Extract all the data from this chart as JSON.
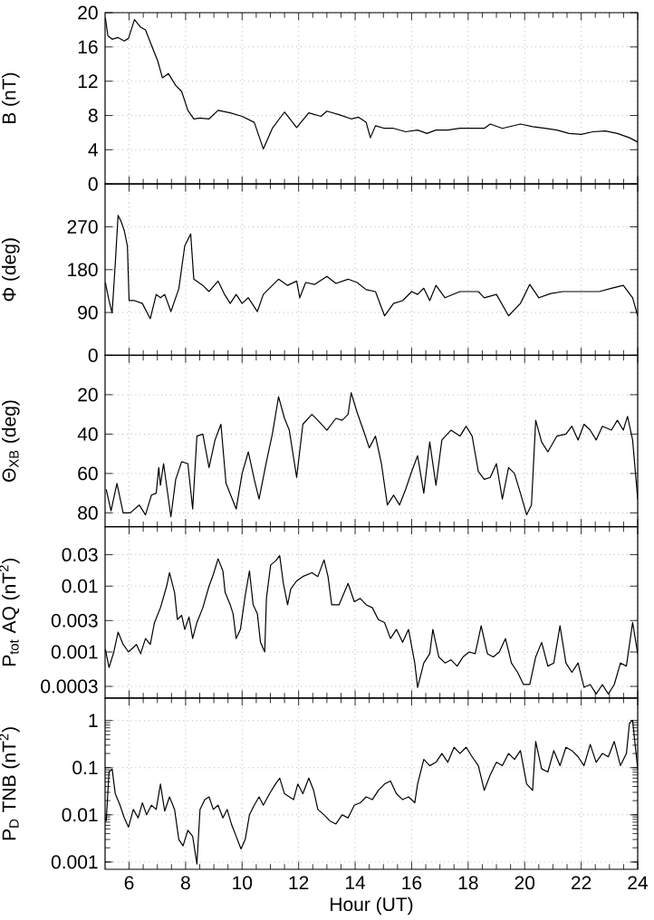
{
  "chart_data": [
    {
      "type": "line",
      "ylabel": "B (nT)",
      "xlim": [
        5.15,
        24
      ],
      "xticks": [
        6,
        8,
        10,
        12,
        14,
        16,
        18,
        20,
        22,
        24
      ],
      "ylim": [
        0,
        20
      ],
      "yticks": [
        0,
        4,
        8,
        12,
        16,
        20
      ],
      "grid": true,
      "tick_labels": "y",
      "color": "#000000",
      "x": [
        5.16,
        5.25,
        5.4,
        5.61,
        5.83,
        5.98,
        6.19,
        6.41,
        6.58,
        6.84,
        7.01,
        7.18,
        7.39,
        7.65,
        7.86,
        8.08,
        8.29,
        8.51,
        8.83,
        9.15,
        9.58,
        10.0,
        10.43,
        10.75,
        11.07,
        11.5,
        11.93,
        12.36,
        12.79,
        13.0,
        13.43,
        13.86,
        14.12,
        14.39,
        14.54,
        14.72,
        15.04,
        15.36,
        15.79,
        16.21,
        16.54,
        16.86,
        17.28,
        17.71,
        18.57,
        18.78,
        19.21,
        19.85,
        20.28,
        20.71,
        21.14,
        21.57,
        22.0,
        22.42,
        22.85,
        23.28,
        23.71,
        24.0
      ],
      "values": [
        19.4,
        17.3,
        16.9,
        17.1,
        16.7,
        17.0,
        19.2,
        18.3,
        18.0,
        15.8,
        14.4,
        12.4,
        12.9,
        11.5,
        10.8,
        8.6,
        7.6,
        7.7,
        7.6,
        8.6,
        8.3,
        7.9,
        7.2,
        4.1,
        6.5,
        8.4,
        6.6,
        8.3,
        7.9,
        8.5,
        8.1,
        7.6,
        7.8,
        7.2,
        5.4,
        6.8,
        6.5,
        6.5,
        6.1,
        6.3,
        5.9,
        6.3,
        6.3,
        6.5,
        6.5,
        7.0,
        6.5,
        7.0,
        6.7,
        6.5,
        6.3,
        5.9,
        5.8,
        6.1,
        6.2,
        5.9,
        5.4,
        4.9
      ]
    },
    {
      "type": "line",
      "ylabel": "Φ (deg)",
      "xlim": [
        5.15,
        24
      ],
      "xticks": [
        6,
        8,
        10,
        12,
        14,
        16,
        18,
        20,
        22,
        24
      ],
      "ylim": [
        0,
        360
      ],
      "yticks": [
        90,
        180,
        270
      ],
      "grid": true,
      "tick_labels": "y",
      "color": "#000000",
      "x": [
        5.16,
        5.29,
        5.4,
        5.51,
        5.61,
        5.72,
        5.83,
        5.94,
        6.0,
        6.19,
        6.47,
        6.75,
        6.96,
        7.11,
        7.26,
        7.48,
        7.76,
        7.97,
        8.18,
        8.29,
        8.61,
        8.83,
        9.15,
        9.36,
        9.58,
        9.79,
        10.0,
        10.22,
        10.54,
        10.75,
        11.07,
        11.29,
        11.61,
        11.93,
        12.04,
        12.25,
        12.57,
        13.0,
        13.32,
        13.75,
        14.07,
        14.39,
        14.72,
        15.04,
        15.36,
        15.68,
        16.0,
        16.21,
        16.43,
        16.64,
        16.86,
        17.18,
        17.71,
        18.36,
        18.57,
        19.0,
        19.43,
        19.85,
        20.18,
        20.5,
        20.93,
        21.35,
        21.78,
        22.21,
        22.64,
        23.07,
        23.49,
        23.82,
        24.0
      ],
      "values": [
        153,
        115,
        89,
        192,
        294,
        281,
        262,
        230,
        115,
        115,
        109,
        77,
        128,
        121,
        128,
        92,
        140,
        230,
        255,
        160,
        147,
        134,
        156,
        130,
        109,
        128,
        109,
        121,
        92,
        128,
        147,
        160,
        147,
        156,
        121,
        153,
        149,
        166,
        151,
        160,
        153,
        138,
        134,
        83,
        109,
        115,
        134,
        128,
        141,
        115,
        147,
        121,
        134,
        134,
        121,
        128,
        83,
        109,
        149,
        121,
        130,
        134,
        134,
        134,
        134,
        141,
        147,
        121,
        83
      ]
    },
    {
      "type": "line",
      "ylabel": "Θ$_{XB}$ (deg)",
      "xlim": [
        5.15,
        24
      ],
      "xticks": [
        6,
        8,
        10,
        12,
        14,
        16,
        18,
        20,
        22,
        24
      ],
      "ylim": [
        87,
        0
      ],
      "yticks": [
        0,
        20,
        40,
        60,
        80
      ],
      "grid": true,
      "tick_labels": "y",
      "color": "#000000",
      "x": [
        5.19,
        5.36,
        5.57,
        5.79,
        6.04,
        6.36,
        6.58,
        6.79,
        6.96,
        7.05,
        7.11,
        7.22,
        7.48,
        7.65,
        7.86,
        8.08,
        8.25,
        8.4,
        8.61,
        8.83,
        9.04,
        9.25,
        9.43,
        9.79,
        10.0,
        10.22,
        10.43,
        10.6,
        10.86,
        11.07,
        11.29,
        11.5,
        11.67,
        11.93,
        12.15,
        12.47,
        12.68,
        13.0,
        13.32,
        13.54,
        13.75,
        13.86,
        14.07,
        14.29,
        14.5,
        14.72,
        14.93,
        15.14,
        15.36,
        15.57,
        15.79,
        16.0,
        16.21,
        16.43,
        16.64,
        16.86,
        17.07,
        17.39,
        17.71,
        17.93,
        18.14,
        18.36,
        18.57,
        18.78,
        19.0,
        19.21,
        19.43,
        19.64,
        19.85,
        20.07,
        20.24,
        20.39,
        20.6,
        20.82,
        21.14,
        21.46,
        21.67,
        21.89,
        22.1,
        22.32,
        22.53,
        22.75,
        23.07,
        23.28,
        23.49,
        23.64,
        23.82,
        24.0
      ],
      "values": [
        68,
        79,
        65,
        80,
        80,
        76,
        81,
        71,
        70,
        57,
        66,
        55,
        82,
        63,
        54,
        55,
        78,
        41,
        40,
        57,
        43,
        35,
        65,
        78,
        60,
        49,
        63,
        73,
        54,
        40,
        21,
        32,
        38,
        62,
        35,
        30,
        33,
        38,
        32,
        33,
        30,
        19,
        29,
        38,
        47,
        41,
        55,
        76,
        71,
        76,
        68,
        59,
        51,
        70,
        44,
        66,
        43,
        38,
        41,
        36,
        41,
        59,
        63,
        62,
        55,
        73,
        57,
        60,
        70,
        81,
        76,
        33,
        44,
        49,
        41,
        40,
        36,
        43,
        35,
        38,
        43,
        36,
        38,
        33,
        38,
        31,
        43,
        73
      ]
    },
    {
      "type": "line",
      "ylabel": "P$_{tot}$ AQ (nT$^{2}$)",
      "xlim": [
        5.15,
        24
      ],
      "xticks": [
        6,
        8,
        10,
        12,
        14,
        16,
        18,
        20,
        22,
        24
      ],
      "ylim": [
        0.0002,
        0.08
      ],
      "yticks": [
        0.0003,
        0.001,
        0.003,
        0.01,
        0.03
      ],
      "log": true,
      "grid": true,
      "tick_labels": "y",
      "color": "#000000",
      "x": [
        5.16,
        5.29,
        5.46,
        5.61,
        5.79,
        5.98,
        6.26,
        6.41,
        6.58,
        6.75,
        6.9,
        7.11,
        7.33,
        7.43,
        7.61,
        7.71,
        7.86,
        7.97,
        8.12,
        8.25,
        8.4,
        8.61,
        8.83,
        8.98,
        9.15,
        9.32,
        9.4,
        9.58,
        9.68,
        9.79,
        9.94,
        10.11,
        10.26,
        10.39,
        10.54,
        10.65,
        10.8,
        10.86,
        11.01,
        11.18,
        11.33,
        11.46,
        11.61,
        11.72,
        11.93,
        12.15,
        12.47,
        12.68,
        12.9,
        13.04,
        13.17,
        13.43,
        13.75,
        13.97,
        14.18,
        14.39,
        14.61,
        14.82,
        15.04,
        15.25,
        15.46,
        15.68,
        15.89,
        16.11,
        16.21,
        16.43,
        16.64,
        16.75,
        16.96,
        17.18,
        17.39,
        17.61,
        17.82,
        18.03,
        18.25,
        18.46,
        18.68,
        18.89,
        19.1,
        19.32,
        19.53,
        19.75,
        19.96,
        20.18,
        20.39,
        20.6,
        20.82,
        21.03,
        21.25,
        21.46,
        21.67,
        21.89,
        22.1,
        22.32,
        22.53,
        22.75,
        22.96,
        23.17,
        23.39,
        23.6,
        23.82,
        24.0
      ],
      "values": [
        0.0011,
        0.00058,
        0.001,
        0.002,
        0.0013,
        0.001,
        0.0013,
        0.00094,
        0.0016,
        0.0013,
        0.0028,
        0.0047,
        0.01,
        0.016,
        0.008,
        0.0031,
        0.0036,
        0.0022,
        0.0034,
        0.0016,
        0.0028,
        0.0047,
        0.01,
        0.015,
        0.026,
        0.017,
        0.008,
        0.0052,
        0.0038,
        0.0016,
        0.0022,
        0.0072,
        0.017,
        0.0052,
        0.0038,
        0.0014,
        0.001,
        0.0065,
        0.021,
        0.024,
        0.029,
        0.011,
        0.0052,
        0.009,
        0.012,
        0.014,
        0.016,
        0.014,
        0.025,
        0.014,
        0.0052,
        0.0052,
        0.011,
        0.0058,
        0.0065,
        0.0052,
        0.0047,
        0.0031,
        0.0028,
        0.0016,
        0.0022,
        0.0014,
        0.0022,
        0.00068,
        0.00029,
        0.00068,
        0.00094,
        0.0022,
        0.00084,
        0.00068,
        0.00076,
        0.00061,
        0.00084,
        0.001,
        0.00094,
        0.0025,
        0.00094,
        0.00084,
        0.001,
        0.0016,
        0.00068,
        0.00049,
        0.00032,
        0.00032,
        0.00084,
        0.0014,
        0.00061,
        0.00068,
        0.0025,
        0.00068,
        0.00049,
        0.00068,
        0.00029,
        0.00032,
        0.00023,
        0.00032,
        0.00023,
        0.00032,
        0.00068,
        0.00061,
        0.0028,
        0.00094
      ]
    },
    {
      "type": "line",
      "ylabel": "P$_{D}$ TNB (nT$^{2}$)",
      "xlabel": "Hour (UT)",
      "xlim": [
        5.15,
        24
      ],
      "xticks": [
        6,
        8,
        10,
        12,
        14,
        16,
        18,
        20,
        22,
        24
      ],
      "ylim": [
        0.0007,
        3
      ],
      "yticks": [
        0.001,
        0.01,
        0.1,
        1
      ],
      "log": true,
      "grid": true,
      "color": "#000000",
      "x": [
        5.16,
        5.19,
        5.29,
        5.4,
        5.51,
        5.68,
        5.83,
        5.98,
        6.15,
        6.32,
        6.47,
        6.62,
        6.79,
        6.96,
        7.11,
        7.26,
        7.43,
        7.61,
        7.76,
        7.91,
        8.08,
        8.25,
        8.4,
        8.51,
        8.68,
        8.83,
        8.98,
        9.15,
        9.32,
        9.47,
        9.62,
        9.79,
        9.96,
        10.11,
        10.26,
        10.43,
        10.6,
        10.75,
        10.97,
        11.18,
        11.33,
        11.5,
        11.67,
        11.82,
        11.97,
        12.15,
        12.36,
        12.53,
        12.68,
        12.9,
        13.11,
        13.32,
        13.54,
        13.75,
        13.97,
        14.18,
        14.39,
        14.61,
        14.82,
        15.04,
        15.25,
        15.46,
        15.68,
        15.89,
        16.11,
        16.21,
        16.43,
        16.64,
        16.86,
        17.07,
        17.28,
        17.5,
        17.71,
        17.93,
        18.14,
        18.36,
        18.57,
        18.78,
        19.0,
        19.21,
        19.43,
        19.64,
        19.85,
        20.07,
        20.28,
        20.39,
        20.6,
        20.82,
        21.03,
        21.25,
        21.46,
        21.67,
        21.89,
        22.1,
        22.32,
        22.53,
        22.75,
        22.96,
        23.17,
        23.39,
        23.6,
        23.71,
        23.82,
        24.0
      ],
      "values": [
        0.0086,
        0.0074,
        0.081,
        0.094,
        0.028,
        0.016,
        0.0086,
        0.0055,
        0.013,
        0.0086,
        0.018,
        0.01,
        0.016,
        0.013,
        0.045,
        0.012,
        0.024,
        0.013,
        0.003,
        0.0022,
        0.0047,
        0.0035,
        0.00091,
        0.013,
        0.021,
        0.024,
        0.013,
        0.016,
        0.0086,
        0.013,
        0.0064,
        0.0035,
        0.0019,
        0.003,
        0.01,
        0.016,
        0.024,
        0.016,
        0.028,
        0.045,
        0.06,
        0.028,
        0.024,
        0.021,
        0.045,
        0.028,
        0.06,
        0.033,
        0.013,
        0.01,
        0.0074,
        0.0064,
        0.01,
        0.0086,
        0.016,
        0.018,
        0.024,
        0.021,
        0.033,
        0.045,
        0.052,
        0.028,
        0.021,
        0.024,
        0.018,
        0.045,
        0.15,
        0.11,
        0.13,
        0.2,
        0.13,
        0.27,
        0.2,
        0.27,
        0.17,
        0.11,
        0.033,
        0.07,
        0.13,
        0.11,
        0.2,
        0.15,
        0.23,
        0.045,
        0.033,
        0.36,
        0.094,
        0.081,
        0.23,
        0.11,
        0.27,
        0.23,
        0.17,
        0.11,
        0.31,
        0.13,
        0.2,
        0.17,
        0.36,
        0.11,
        0.2,
        0.88,
        1.0,
        0.094
      ]
    }
  ]
}
